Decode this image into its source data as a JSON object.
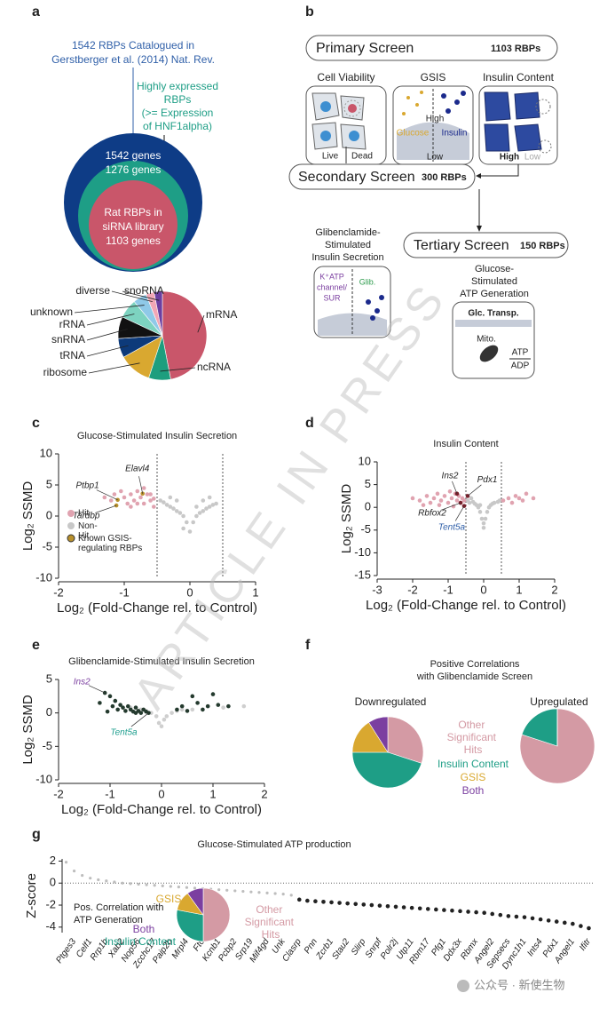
{
  "panel_labels": [
    "a",
    "b",
    "c",
    "d",
    "e",
    "f",
    "g"
  ],
  "watermark": "ARTICLE IN PRESS",
  "footer": "公众号 · 新使生物",
  "venn": {
    "source": [
      "1542 RBPs Catalogued in",
      "Gerstberger et al. (2014) Nat. Rev."
    ],
    "expressed": [
      "Highly expressed",
      "RBPs",
      "(>= Expression",
      "of HNF1alpha)"
    ],
    "outer": "1542 genes",
    "middle": "1276 genes",
    "inner": [
      "Rat RBPs in",
      "siRNA library",
      "1103 genes"
    ]
  },
  "schematic": {
    "primary": {
      "title": "Primary Screen",
      "count": "1103 RBPs"
    },
    "assays": [
      "Cell Viability",
      "GSIS",
      "Insulin Content"
    ],
    "viability": [
      "Live",
      "Dead"
    ],
    "gsis": [
      "High",
      "Glucose",
      "Insulin",
      "Low"
    ],
    "content": [
      "High",
      "Low"
    ],
    "secondary": {
      "title": "Secondary Screen",
      "count": "300 RBPs"
    },
    "glib_title": [
      "Glibenclamide-",
      "Stimulated",
      "Insulin Secretion"
    ],
    "glib": {
      "channel": [
        "K⁺ATP",
        "channel/",
        "SUR"
      ],
      "drug": "Glib."
    },
    "tertiary": {
      "title": "Tertiary Screen",
      "count": "150 RBPs"
    },
    "atp_title": [
      "Glucose-",
      "Stimulated",
      "ATP Generation"
    ],
    "atp": {
      "transporter": "Glc. Transp.",
      "mito": "Mito.",
      "ratio": [
        "ATP",
        "ADP"
      ]
    }
  },
  "chart_data": [
    {
      "type": "pie",
      "categories": [
        "mRNA",
        "ncRNA",
        "ribosome",
        "tRNA",
        "snRNA",
        "rRNA",
        "unknown",
        "diverse",
        "snoRNA"
      ],
      "values": [
        47,
        8,
        12,
        7,
        8,
        7,
        5,
        3,
        3
      ],
      "colors": [
        "#c9566a",
        "#1e9e7e",
        "#d9a830",
        "#0d3a7a",
        "#111111",
        "#7dd3c0",
        "#8fc9e8",
        "#f2a7b5",
        "#6b3fa0"
      ]
    },
    {
      "type": "scatter",
      "title": "Glucose-Stimulated Insulin Secretion",
      "xlabel": "Log₂ (Fold-Change rel. to Control)",
      "ylabel": "Log₂ SSMD",
      "xlim": [
        -2,
        1
      ],
      "xticks": [
        -2,
        -1,
        0,
        1
      ],
      "ylim": [
        -10,
        10
      ],
      "yticks": [
        -10,
        -5,
        0,
        5,
        10
      ],
      "vlines": [
        -0.5,
        0.5
      ],
      "legend": "left",
      "series": [
        {
          "name": "Hit",
          "color": "#e0a3b0",
          "x": [
            -1.3,
            -1.2,
            -1.15,
            -1.0,
            -0.95,
            -0.9,
            -0.85,
            -0.8,
            -0.75,
            -0.7,
            -0.65,
            -0.6,
            -0.55,
            -1.05,
            -0.9,
            -0.8,
            -0.7,
            -0.6,
            -0.55
          ],
          "values": [
            3,
            2.5,
            3.5,
            3,
            2,
            3.5,
            2.5,
            4,
            3,
            2,
            3.5,
            2.5,
            1.5,
            4,
            1.5,
            2,
            4.5,
            3.5,
            2.8
          ]
        },
        {
          "name": "Non-Hit",
          "color": "#c8c8c8",
          "x": [
            -0.45,
            -0.4,
            -0.35,
            -0.3,
            -0.25,
            -0.2,
            -0.15,
            -0.1,
            -0.05,
            0,
            0.05,
            0.1,
            0.15,
            0.2,
            0.25,
            0.3,
            0.35,
            0.4,
            -0.3,
            -0.2,
            0.1,
            0.2,
            0.3,
            -0.1
          ],
          "values": [
            2.5,
            2.2,
            1.8,
            1.5,
            1.2,
            0.8,
            0.5,
            0,
            -1,
            -2.5,
            -1,
            0,
            0.5,
            0.8,
            1.2,
            1.5,
            1.8,
            2,
            3,
            2.5,
            1.5,
            2.5,
            3,
            -2
          ]
        },
        {
          "name": "Known GSIS-regulating RBPs",
          "color": "#b8902c",
          "x": [
            -1.1,
            -1.12,
            -0.72
          ],
          "values": [
            2.6,
            1.7,
            3.6
          ]
        }
      ],
      "annotations": [
        {
          "text": "Ptbp1",
          "color": "#222222"
        },
        {
          "text": "Tardbp",
          "color": "#222222"
        },
        {
          "text": "Elavl4",
          "color": "#222222"
        }
      ]
    },
    {
      "type": "scatter",
      "title": "Insulin Content",
      "xlabel": "Log₂ (Fold-Change rel. to Control)",
      "ylabel": "Log₂ SSMD",
      "xlim": [
        -3,
        2
      ],
      "xticks": [
        -3,
        -2,
        -1,
        0,
        1,
        2
      ],
      "ylim": [
        -15,
        10
      ],
      "yticks": [
        -15,
        -10,
        -5,
        0,
        5,
        10
      ],
      "vlines": [
        -0.5,
        0.5
      ],
      "series": [
        {
          "color": "#c8c8c8",
          "x": [
            -0.45,
            -0.4,
            -0.3,
            -0.25,
            -0.2,
            -0.15,
            -0.1,
            -0.05,
            0,
            0.05,
            0.1,
            0.15,
            0.2,
            0.3,
            0.4,
            0.45,
            -0.35,
            0.25,
            0,
            -0.1
          ],
          "values": [
            1.5,
            1,
            1.2,
            0.8,
            0.5,
            0,
            -1,
            -2.5,
            -4.5,
            -2.5,
            -1,
            0,
            0.5,
            1,
            1.2,
            1.5,
            2,
            0.8,
            -3.5,
            0.5
          ]
        },
        {
          "color": "#e0a3b0",
          "x": [
            -2,
            -1.8,
            -1.6,
            -1.5,
            -1.4,
            -1.3,
            -1.2,
            -1.1,
            -1,
            -0.9,
            -0.8,
            -0.75,
            -0.7,
            -0.65,
            -0.6,
            -0.55,
            0.55,
            0.7,
            0.8,
            0.9,
            1,
            1.1,
            1.2,
            1.4,
            -1.7,
            -1.25,
            -0.95,
            -0.85
          ],
          "values": [
            2,
            1.5,
            2.5,
            1,
            2,
            3,
            1.5,
            2.5,
            1,
            2,
            3,
            1.5,
            2.5,
            1,
            2,
            1.5,
            1.5,
            2,
            1,
            2.5,
            2,
            1.5,
            3,
            2,
            0.5,
            0.5,
            3.5,
            0.2
          ]
        },
        {
          "color": "#7a1f2b",
          "x": [
            -0.75,
            -0.45,
            -0.65,
            -0.55
          ],
          "values": [
            3,
            2.5,
            1,
            0.3
          ]
        }
      ],
      "annotations": [
        {
          "text": "Ins2",
          "color": "#222222"
        },
        {
          "text": "Pdx1",
          "color": "#222222"
        },
        {
          "text": "Rbfox2",
          "color": "#222222"
        },
        {
          "text": "Tent5a",
          "color": "#2f5fa8"
        }
      ]
    },
    {
      "type": "scatter",
      "title": "Glibenclamide-Stimulated Insulin Secretion",
      "xlabel": "Log₂ (Fold-Change rel. to Control)",
      "ylabel": "Log₂ SSMD",
      "xlim": [
        -2,
        2
      ],
      "xticks": [
        -2,
        -1,
        0,
        1,
        2
      ],
      "ylim": [
        -10,
        5
      ],
      "yticks": [
        -10,
        -5,
        0,
        5
      ],
      "series": [
        {
          "color": "#cfcfcf",
          "x": [
            -0.4,
            -0.3,
            -0.2,
            -0.1,
            0,
            0.1,
            0.2,
            0.3,
            0.4,
            -0.05,
            0.05,
            0.6,
            0.9,
            1.2,
            1.6,
            -0.6
          ],
          "values": [
            0.5,
            0.3,
            0,
            -0.5,
            -2,
            -0.5,
            0,
            0.3,
            0.5,
            -1.5,
            -1,
            0.5,
            1,
            0.8,
            1,
            0.8
          ]
        },
        {
          "color": "#243a2e",
          "x": [
            -1.2,
            -1.1,
            -1,
            -0.95,
            -0.9,
            -0.85,
            -0.8,
            -0.75,
            -0.7,
            -0.65,
            -0.6,
            -0.55,
            -0.5,
            -0.45,
            -0.4,
            -0.35,
            -0.3,
            -0.25,
            0.3,
            0.4,
            0.5,
            0.6,
            0.7,
            0.8,
            0.9,
            1,
            1.1,
            1.3,
            -1.05,
            -0.5
          ],
          "values": [
            1.5,
            3,
            2.5,
            1,
            1.8,
            0.5,
            1.2,
            0.8,
            0.3,
            1,
            0.5,
            0.2,
            0.8,
            0.3,
            0,
            0.5,
            0.2,
            0,
            0.5,
            1,
            0.3,
            2.5,
            1.5,
            0.5,
            1,
            2.8,
            1.2,
            1,
            0.2,
            0
          ]
        }
      ],
      "annotations": [
        {
          "text": "Ins2",
          "color": "#7b3fa0"
        },
        {
          "text": "Tent5a",
          "color": "#1e9e8e"
        }
      ]
    },
    {
      "type": "pie",
      "title": [
        "Positive Correlations",
        "with Glibenclamide Screen"
      ],
      "categories": [
        "Other Significant Hits",
        "Insulin Content",
        "GSIS",
        "Both"
      ],
      "colors": [
        "#d49aa4",
        "#1e9e86",
        "#d9a830",
        "#7b3fa0"
      ],
      "pies": [
        {
          "name": "Downregulated",
          "values": [
            30,
            45,
            16,
            9
          ]
        },
        {
          "name": "Upregulated",
          "values": [
            80,
            20,
            0,
            0
          ]
        }
      ]
    },
    {
      "type": "dot",
      "title": "Glucose-Stimulated ATP production",
      "ylabel": "Z-score",
      "ylim": [
        -4.5,
        2.2
      ],
      "yticks": [
        -4,
        -2,
        0,
        2
      ],
      "hlines": [
        0
      ],
      "categories": [
        null,
        "Ptges3",
        null,
        "Celf1",
        null,
        "Rrp1b",
        null,
        "Xab2",
        null,
        "Nop56",
        null,
        "Zcchc17",
        null,
        "Paip2b",
        null,
        "Mrpl4",
        null,
        "Fto",
        null,
        "Kcnb1",
        null,
        "Pcbp2",
        null,
        "Srp19",
        null,
        "Mif4gd",
        null,
        "Unk",
        null,
        "Clasrp",
        null,
        "Pnn",
        null,
        "Zcrb1",
        null,
        "Stau2",
        null,
        "Slirp",
        null,
        "Snrpf",
        null,
        "Polr2j",
        null,
        "Utp11",
        null,
        "Rbm17",
        null,
        "Pfg1",
        null,
        "Ddx3x",
        null,
        "Rbmx",
        null,
        "Angel2",
        null,
        "Sepsecs",
        null,
        "Dync1h1",
        null,
        "Ints4",
        null,
        "Pdx1",
        null,
        "Angel1",
        null,
        "Ifitr"
      ],
      "series": [
        {
          "color": "#bdbdbd",
          "values": [
            1.9,
            1.1,
            0.7,
            0.45,
            0.3,
            0.2,
            0.1,
            0.0,
            -0.05,
            -0.1,
            -0.15,
            -0.2,
            -0.25,
            -0.3,
            -0.35,
            -0.4,
            -0.45,
            -0.5,
            -0.55,
            -0.6,
            -0.65,
            -0.7,
            -0.75,
            -0.8,
            -0.85,
            -0.9,
            -0.95,
            -1.0,
            -1.1,
            null,
            null,
            null,
            null,
            null,
            null,
            null,
            null,
            null,
            null,
            null,
            null,
            null,
            null,
            null,
            null,
            null,
            null,
            null,
            null,
            null,
            null,
            null,
            null,
            null,
            null,
            null,
            null,
            null,
            null,
            null,
            null,
            null,
            null,
            null,
            null,
            null
          ]
        },
        {
          "color": "#222222",
          "values": [
            null,
            null,
            null,
            null,
            null,
            null,
            null,
            null,
            null,
            null,
            null,
            null,
            null,
            null,
            null,
            null,
            null,
            null,
            null,
            null,
            null,
            null,
            null,
            null,
            null,
            null,
            null,
            null,
            null,
            -1.5,
            -1.6,
            -1.65,
            -1.7,
            -1.75,
            -1.8,
            -1.85,
            -1.9,
            -1.95,
            -2.0,
            -2.05,
            -2.1,
            -2.15,
            -2.2,
            -2.25,
            -2.3,
            -2.35,
            -2.4,
            -2.45,
            -2.5,
            -2.55,
            -2.6,
            -2.65,
            -2.7,
            -2.8,
            -2.9,
            -3.0,
            -3.05,
            -3.1,
            -3.2,
            -3.3,
            -3.4,
            -3.5,
            -3.6,
            -3.7,
            -3.9,
            -4.1
          ]
        }
      ]
    },
    {
      "type": "pie",
      "title": [
        "Pos. Correlation with",
        "ATP Generation"
      ],
      "categories": [
        "Other Significant Hits",
        "Insulin Content",
        "GSIS",
        "Both"
      ],
      "colors": [
        "#d49aa4",
        "#1e9e86",
        "#d9a830",
        "#7b3fa0"
      ],
      "values": [
        50,
        28,
        12,
        10
      ]
    }
  ]
}
